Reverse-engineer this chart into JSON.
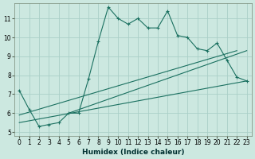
{
  "xlabel": "Humidex (Indice chaleur)",
  "background_color": "#cce8e0",
  "grid_color": "#aacfc8",
  "line_color": "#1a7060",
  "x_hours": [
    0,
    1,
    2,
    3,
    4,
    5,
    6,
    7,
    8,
    9,
    10,
    11,
    12,
    13,
    14,
    15,
    16,
    17,
    18,
    19,
    20,
    21,
    22,
    23
  ],
  "y_main": [
    7.2,
    6.2,
    5.3,
    5.4,
    5.5,
    6.0,
    6.0,
    7.8,
    9.8,
    11.6,
    11.0,
    10.7,
    11.0,
    10.5,
    10.5,
    11.4,
    10.1,
    10.0,
    9.4,
    9.3,
    9.7,
    8.8,
    7.9,
    7.7
  ],
  "y_line2_x": [
    0,
    22
  ],
  "y_line2_y": [
    5.9,
    9.3
  ],
  "y_line3_x": [
    0,
    23
  ],
  "y_line3_y": [
    5.5,
    7.7
  ],
  "y_line4_x": [
    5,
    23
  ],
  "y_line4_y": [
    6.0,
    9.3
  ],
  "ylim": [
    4.8,
    11.8
  ],
  "xlim": [
    -0.5,
    23.5
  ],
  "yticks": [
    5,
    6,
    7,
    8,
    9,
    10,
    11
  ],
  "xticks": [
    0,
    1,
    2,
    3,
    4,
    5,
    6,
    7,
    8,
    9,
    10,
    11,
    12,
    13,
    14,
    15,
    16,
    17,
    18,
    19,
    20,
    21,
    22,
    23
  ],
  "xlabel_fontsize": 6.5,
  "tick_fontsize": 5.5
}
